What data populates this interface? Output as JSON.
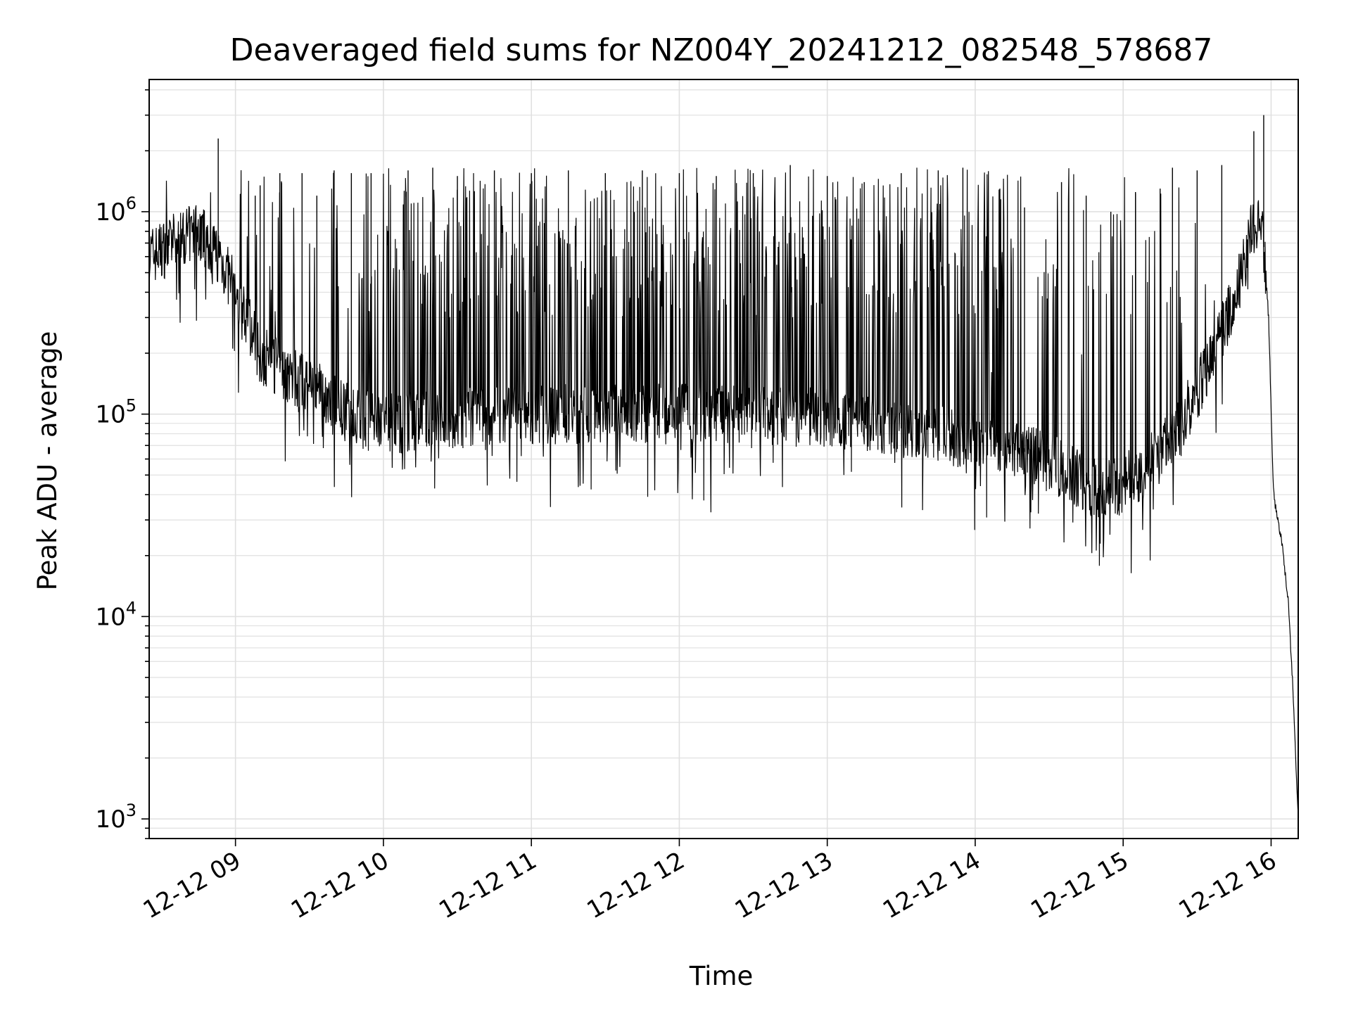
{
  "chart_data": {
    "type": "line",
    "title": "Deaveraged field sums for NZ004Y_20241212_082548_578687",
    "xlabel": "Time",
    "ylabel": "Peak ADU - average",
    "y_scale": "log",
    "ylim": [
      800,
      4500000
    ],
    "xlim": [
      "2024-12-12 08:25",
      "2024-12-12 16:11"
    ],
    "grid": true,
    "line_color": "#000000",
    "grid_color": "#e0e0e0",
    "x_ticks": [
      {
        "value": "2024-12-12 09:00",
        "label": "12-12 09"
      },
      {
        "value": "2024-12-12 10:00",
        "label": "12-12 10"
      },
      {
        "value": "2024-12-12 11:00",
        "label": "12-12 11"
      },
      {
        "value": "2024-12-12 12:00",
        "label": "12-12 12"
      },
      {
        "value": "2024-12-12 13:00",
        "label": "12-12 13"
      },
      {
        "value": "2024-12-12 14:00",
        "label": "12-12 14"
      },
      {
        "value": "2024-12-12 15:00",
        "label": "12-12 15"
      },
      {
        "value": "2024-12-12 16:00",
        "label": "12-12 16"
      }
    ],
    "y_ticks": [
      {
        "value": 1000,
        "base": "10",
        "exp": "3"
      },
      {
        "value": 10000,
        "base": "10",
        "exp": "4"
      },
      {
        "value": 100000,
        "base": "10",
        "exp": "5"
      },
      {
        "value": 1000000,
        "base": "10",
        "exp": "6"
      }
    ],
    "baseline": {
      "x": [
        "2024-12-12 08:25",
        "2024-12-12 08:35",
        "2024-12-12 08:45",
        "2024-12-12 08:53",
        "2024-12-12 09:00",
        "2024-12-12 09:10",
        "2024-12-12 09:20",
        "2024-12-12 09:30",
        "2024-12-12 09:40",
        "2024-12-12 09:50",
        "2024-12-12 10:00",
        "2024-12-12 10:30",
        "2024-12-12 11:00",
        "2024-12-12 11:30",
        "2024-12-12 12:00",
        "2024-12-12 12:30",
        "2024-12-12 13:00",
        "2024-12-12 13:30",
        "2024-12-12 14:00",
        "2024-12-12 14:20",
        "2024-12-12 14:40",
        "2024-12-12 14:50",
        "2024-12-12 15:00",
        "2024-12-12 15:10",
        "2024-12-12 15:20",
        "2024-12-12 15:30",
        "2024-12-12 15:40",
        "2024-12-12 15:48",
        "2024-12-12 15:52",
        "2024-12-12 15:56",
        "2024-12-12 15:59",
        "2024-12-12 16:01",
        "2024-12-12 16:04",
        "2024-12-12 16:07",
        "2024-12-12 16:09",
        "2024-12-12 16:11"
      ],
      "y": [
        600000,
        700000,
        800000,
        620000,
        400000,
        200000,
        160000,
        140000,
        110000,
        95000,
        90000,
        95000,
        100000,
        100000,
        100000,
        100000,
        95000,
        85000,
        75000,
        65000,
        50000,
        42000,
        45000,
        55000,
        75000,
        130000,
        250000,
        500000,
        800000,
        1000000,
        300000,
        40000,
        25000,
        12000,
        4000,
        1000
      ]
    },
    "spikes": [
      {
        "x": "2024-12-12 08:53",
        "y": 2300000
      },
      {
        "x": "2024-12-12 09:08",
        "y": 1200000
      },
      {
        "x": "2024-12-12 09:10",
        "y": 1350000
      },
      {
        "x": "2024-12-12 09:18",
        "y": 1550000
      },
      {
        "x": "2024-12-12 09:27",
        "y": 1550000
      },
      {
        "x": "2024-12-12 09:33",
        "y": 1200000
      },
      {
        "x": "2024-12-12 09:40",
        "y": 1600000
      },
      {
        "x": "2024-12-12 09:47",
        "y": 1550000
      },
      {
        "x": "2024-12-12 09:55",
        "y": 1550000
      },
      {
        "x": "2024-12-12 10:10",
        "y": 1600000
      },
      {
        "x": "2024-12-12 10:20",
        "y": 1650000
      },
      {
        "x": "2024-12-12 10:30",
        "y": 1500000
      },
      {
        "x": "2024-12-12 10:45",
        "y": 1600000
      },
      {
        "x": "2024-12-12 11:00",
        "y": 1550000
      },
      {
        "x": "2024-12-12 11:15",
        "y": 1600000
      },
      {
        "x": "2024-12-12 11:30",
        "y": 1550000
      },
      {
        "x": "2024-12-12 11:45",
        "y": 1600000
      },
      {
        "x": "2024-12-12 12:00",
        "y": 1550000
      },
      {
        "x": "2024-12-12 12:15",
        "y": 1500000
      },
      {
        "x": "2024-12-12 12:30",
        "y": 1550000
      },
      {
        "x": "2024-12-12 12:45",
        "y": 1700000
      },
      {
        "x": "2024-12-12 13:00",
        "y": 1500000
      },
      {
        "x": "2024-12-12 13:15",
        "y": 1400000
      },
      {
        "x": "2024-12-12 13:30",
        "y": 1550000
      },
      {
        "x": "2024-12-12 13:45",
        "y": 1600000
      },
      {
        "x": "2024-12-12 13:55",
        "y": 1650000
      },
      {
        "x": "2024-12-12 14:10",
        "y": 1300000
      },
      {
        "x": "2024-12-12 14:20",
        "y": 1050000
      },
      {
        "x": "2024-12-12 14:35",
        "y": 1400000
      },
      {
        "x": "2024-12-12 14:45",
        "y": 1200000
      },
      {
        "x": "2024-12-12 14:55",
        "y": 1000000
      },
      {
        "x": "2024-12-12 15:05",
        "y": 1250000
      },
      {
        "x": "2024-12-12 15:15",
        "y": 1300000
      },
      {
        "x": "2024-12-12 15:20",
        "y": 1650000
      },
      {
        "x": "2024-12-12 15:30",
        "y": 1600000
      },
      {
        "x": "2024-12-12 15:40",
        "y": 1700000
      },
      {
        "x": "2024-12-12 15:53",
        "y": 2500000
      },
      {
        "x": "2024-12-12 15:57",
        "y": 3000000
      }
    ]
  }
}
